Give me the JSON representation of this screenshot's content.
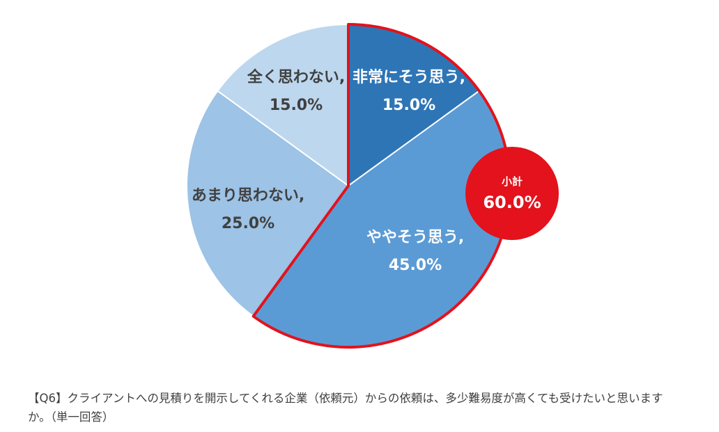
{
  "chart_data": {
    "type": "pie",
    "slices": [
      {
        "label": "非常にそう思う,",
        "value": 15.0,
        "value_label": "15.0%",
        "color": "#2e75b6",
        "label_color": "#ffffff"
      },
      {
        "label": "ややそう思う,",
        "value": 45.0,
        "value_label": "45.0%",
        "color": "#5b9bd5",
        "label_color": "#ffffff"
      },
      {
        "label": "あまり思わない,",
        "value": 25.0,
        "value_label": "25.0%",
        "color": "#9dc3e6",
        "label_color": "#404040"
      },
      {
        "label": "全く思わない,",
        "value": 15.0,
        "value_label": "15.0%",
        "color": "#bdd7ee",
        "label_color": "#404040"
      }
    ],
    "start_angle": "12 o'clock",
    "direction": "clockwise",
    "highlight": {
      "slices": [
        0,
        1
      ],
      "outline_color": "#e3121c",
      "subtotal_label": "小計",
      "subtotal_value": "60.0%",
      "badge_color": "#e3121c"
    }
  },
  "caption": {
    "text": "【Q6】クライアントへの見積りを開示してくれる企業（依頼元）からの依頼は、多少難易度が高くても受けたいと思いますか。（単一回答）"
  }
}
